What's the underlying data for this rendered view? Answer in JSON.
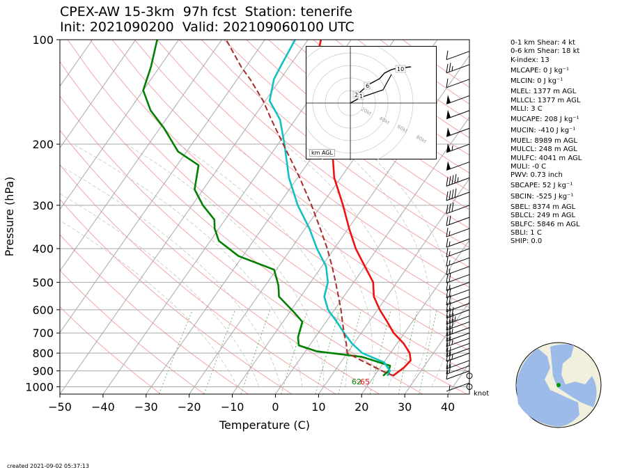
{
  "title": {
    "line1": "CPEX-AW 15-3km  97h fcst  Station: tenerife",
    "line2": "Init: 2021090200  Valid: 202109060100 UTC"
  },
  "stats": [
    "0-1 km Shear: 4 kt",
    "0-6 km Shear: 18 kt",
    "K-index: 13",
    "MLCAPE: 0 J kg⁻¹",
    "MLCIN: 0 J kg⁻¹",
    "MLEL: 1377 m AGL",
    "MLLCL: 1377 m AGL",
    "MLLI: 3 C",
    "MUCAPE: 208 J kg⁻¹",
    "MUCIN: -410 J kg⁻¹",
    "MUEL: 8989 m AGL",
    "MULCL: 248 m AGL",
    "MULFC: 4041 m AGL",
    "MULI: -0 C",
    "PWV: 0.73 inch",
    "SBCAPE: 52 J kg⁻¹",
    "SBCIN: -525 J kg⁻¹",
    "SBEL: 8374 m AGL",
    "SBLCL: 249 m AGL",
    "SBLFC: 5846 m AGL",
    "SBLI: 1 C",
    "SHIP: 0.0"
  ],
  "created": "created 2021-09-02 05:37:13",
  "knot_label": "knot",
  "hodograph": {
    "unit_label": "km AGL",
    "ring_labels": [
      "20kt",
      "40kt",
      "60kt",
      "80kt"
    ],
    "height_labels": [
      "1",
      "2",
      "6",
      "10"
    ]
  },
  "colors": {
    "temperature": "#ee1111",
    "dewpoint": "#008000",
    "wetbulb": "#11c0c0",
    "parcel": "#a52a2a",
    "dry_adiabat": "#f4a6a6",
    "isotherm": "#a8a8a8",
    "mixing_ratio": "#66bb66",
    "globe_ocean": "#9dbbe8",
    "globe_land": "#f0f0dc",
    "station": "#009900"
  },
  "chart_data": {
    "type": "skew-t",
    "xlabel": "Temperature (C)",
    "ylabel": "Pressure (hPa)",
    "xlim": [
      -50,
      45
    ],
    "ylim": [
      1050,
      100
    ],
    "x_ticks": [
      -50,
      -40,
      -30,
      -20,
      -10,
      0,
      10,
      20,
      30,
      40
    ],
    "y_ticks": [
      100,
      200,
      300,
      400,
      500,
      600,
      700,
      800,
      900,
      1000
    ],
    "surface_temp_label": "65",
    "surface_dew_label": "62",
    "series": [
      {
        "key": "temperature",
        "points": [
          [
            24.3,
            930
          ],
          [
            25.5,
            880
          ],
          [
            25.9,
            840
          ],
          [
            24.5,
            800
          ],
          [
            21.5,
            750
          ],
          [
            17.5,
            700
          ],
          [
            14.2,
            650
          ],
          [
            10.5,
            600
          ],
          [
            7.0,
            550
          ],
          [
            4.5,
            500
          ],
          [
            0.0,
            450
          ],
          [
            -5.0,
            400
          ],
          [
            -9.8,
            350
          ],
          [
            -15.0,
            300
          ],
          [
            -21.5,
            250
          ],
          [
            -27.5,
            200
          ],
          [
            -34.0,
            170
          ],
          [
            -38.5,
            150
          ],
          [
            -42.0,
            130
          ],
          [
            -44.0,
            120
          ],
          [
            -47.0,
            100
          ]
        ]
      },
      {
        "key": "dewpoint",
        "points": [
          [
            22.0,
            930
          ],
          [
            22.5,
            900
          ],
          [
            22.0,
            870
          ],
          [
            14.0,
            820
          ],
          [
            2.5,
            790
          ],
          [
            -2.5,
            760
          ],
          [
            -4.0,
            720
          ],
          [
            -5.5,
            650
          ],
          [
            -9.0,
            610
          ],
          [
            -15.0,
            550
          ],
          [
            -17.0,
            510
          ],
          [
            -20.5,
            460
          ],
          [
            -31.0,
            420
          ],
          [
            -38.0,
            380
          ],
          [
            -41.0,
            350
          ],
          [
            -42.5,
            330
          ],
          [
            -47.5,
            300
          ],
          [
            -52.0,
            270
          ],
          [
            -55.0,
            230
          ],
          [
            -62.0,
            210
          ],
          [
            -69.0,
            180
          ],
          [
            -75.0,
            160
          ],
          [
            -80.0,
            140
          ],
          [
            -82.0,
            120
          ],
          [
            -85.0,
            100
          ]
        ]
      },
      {
        "key": "wetbulb",
        "points": [
          [
            23.0,
            930
          ],
          [
            22.8,
            900
          ],
          [
            20.0,
            850
          ],
          [
            13.5,
            800
          ],
          [
            9.5,
            750
          ],
          [
            6.0,
            700
          ],
          [
            2.5,
            650
          ],
          [
            -1.5,
            600
          ],
          [
            -4.5,
            550
          ],
          [
            -6.0,
            500
          ],
          [
            -9.0,
            450
          ],
          [
            -14.0,
            400
          ],
          [
            -19.0,
            350
          ],
          [
            -25.5,
            300
          ],
          [
            -32.0,
            250
          ],
          [
            -38.5,
            200
          ],
          [
            -43.5,
            170
          ],
          [
            -49.0,
            150
          ],
          [
            -51.5,
            130
          ],
          [
            -52.0,
            120
          ],
          [
            -53.0,
            100
          ]
        ]
      },
      {
        "key": "parcel",
        "points": [
          [
            24.5,
            930
          ],
          [
            20.9,
            900
          ],
          [
            15.6,
            850
          ],
          [
            10.0,
            800
          ],
          [
            8.2,
            750
          ],
          [
            6.0,
            700
          ],
          [
            3.8,
            650
          ],
          [
            1.5,
            600
          ],
          [
            -1.2,
            550
          ],
          [
            -4.2,
            500
          ],
          [
            -7.6,
            450
          ],
          [
            -11.6,
            400
          ],
          [
            -16.5,
            350
          ],
          [
            -22.3,
            300
          ],
          [
            -29.5,
            250
          ],
          [
            -38.8,
            200
          ],
          [
            -45.5,
            170
          ],
          [
            -50.5,
            150
          ],
          [
            -57.0,
            130
          ],
          [
            -61.0,
            120
          ],
          [
            -69.0,
            100
          ]
        ]
      }
    ],
    "wind_barbs": [
      {
        "p": 1000,
        "speed": 0
      },
      {
        "p": 975,
        "speed": 5
      },
      {
        "p": 930,
        "speed": 0
      },
      {
        "p": 900,
        "speed": 10
      },
      {
        "p": 870,
        "speed": 20
      },
      {
        "p": 840,
        "speed": 20
      },
      {
        "p": 800,
        "speed": 25
      },
      {
        "p": 775,
        "speed": 20
      },
      {
        "p": 750,
        "speed": 10
      },
      {
        "p": 725,
        "speed": 25
      },
      {
        "p": 700,
        "speed": 20
      },
      {
        "p": 675,
        "speed": 25
      },
      {
        "p": 650,
        "speed": 30
      },
      {
        "p": 625,
        "speed": 35
      },
      {
        "p": 600,
        "speed": 30
      },
      {
        "p": 575,
        "speed": 20
      },
      {
        "p": 550,
        "speed": 20
      },
      {
        "p": 525,
        "speed": 20
      },
      {
        "p": 500,
        "speed": 15
      },
      {
        "p": 475,
        "speed": 20
      },
      {
        "p": 450,
        "speed": 15
      },
      {
        "p": 425,
        "speed": 15
      },
      {
        "p": 400,
        "speed": 15
      },
      {
        "p": 375,
        "speed": 15
      },
      {
        "p": 350,
        "speed": 15
      },
      {
        "p": 325,
        "speed": 20
      },
      {
        "p": 300,
        "speed": 30
      },
      {
        "p": 275,
        "speed": 40
      },
      {
        "p": 250,
        "speed": 45
      },
      {
        "p": 225,
        "speed": 50
      },
      {
        "p": 200,
        "speed": 55
      },
      {
        "p": 180,
        "speed": 50
      },
      {
        "p": 160,
        "speed": 50
      },
      {
        "p": 145,
        "speed": 50
      },
      {
        "p": 130,
        "speed": 10
      },
      {
        "p": 118,
        "speed": 25
      },
      {
        "p": 108,
        "speed": 10
      }
    ]
  }
}
